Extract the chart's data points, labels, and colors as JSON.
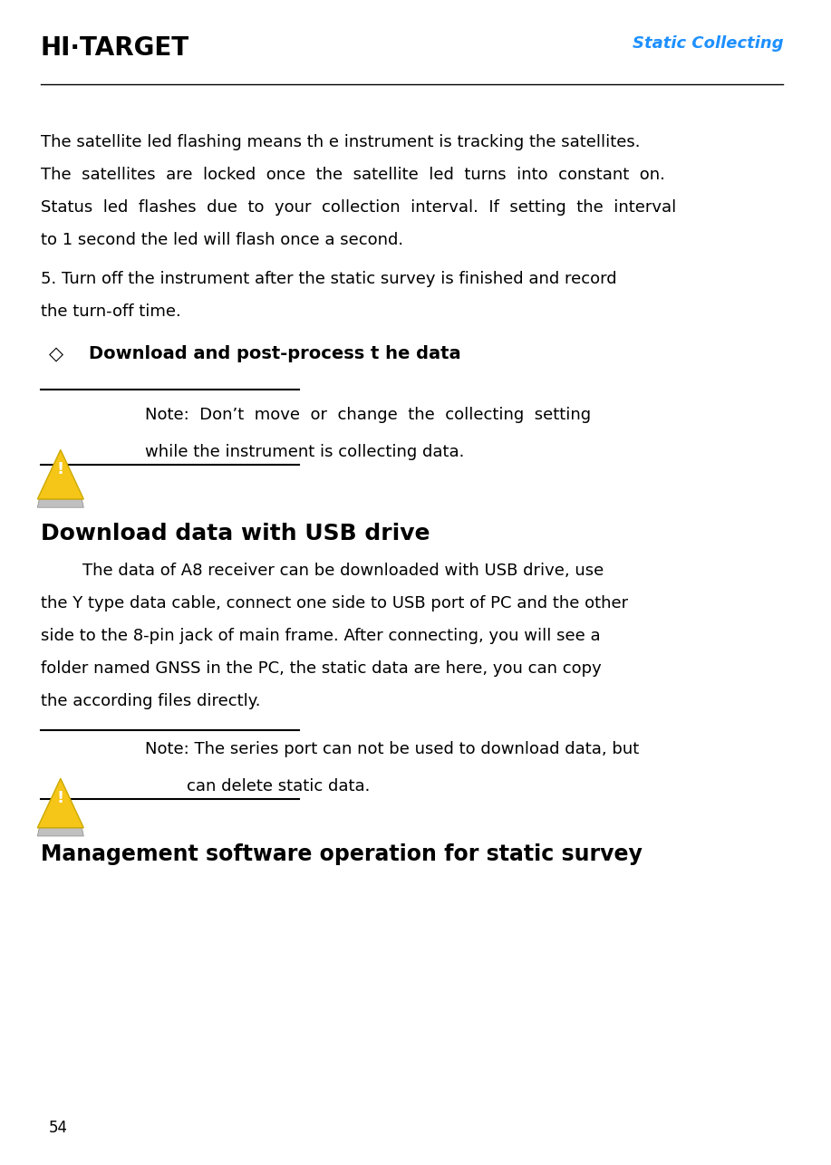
{
  "page_width": 9.17,
  "page_height": 12.86,
  "bg_color": "#ffffff",
  "header_title": "Static Collecting",
  "header_title_color": "#1e90ff",
  "logo_text": "HI·TARGET",
  "body_text_color": "#000000",
  "body_font_size": 13,
  "section_bullet": "◇",
  "section_title": "Download and post-process t he data",
  "note1_line1": "Note:  Don’t  move  or  change  the  collecting  setting",
  "note1_line2": "while the instrument is collecting data.",
  "section2_title": "Download data with USB drive",
  "note2_line1": "Note: The series port can not be used to download data, but",
  "note2_line2": "        can delete static data.",
  "section3_title": "Management software operation for static survey",
  "footer_page": "54"
}
